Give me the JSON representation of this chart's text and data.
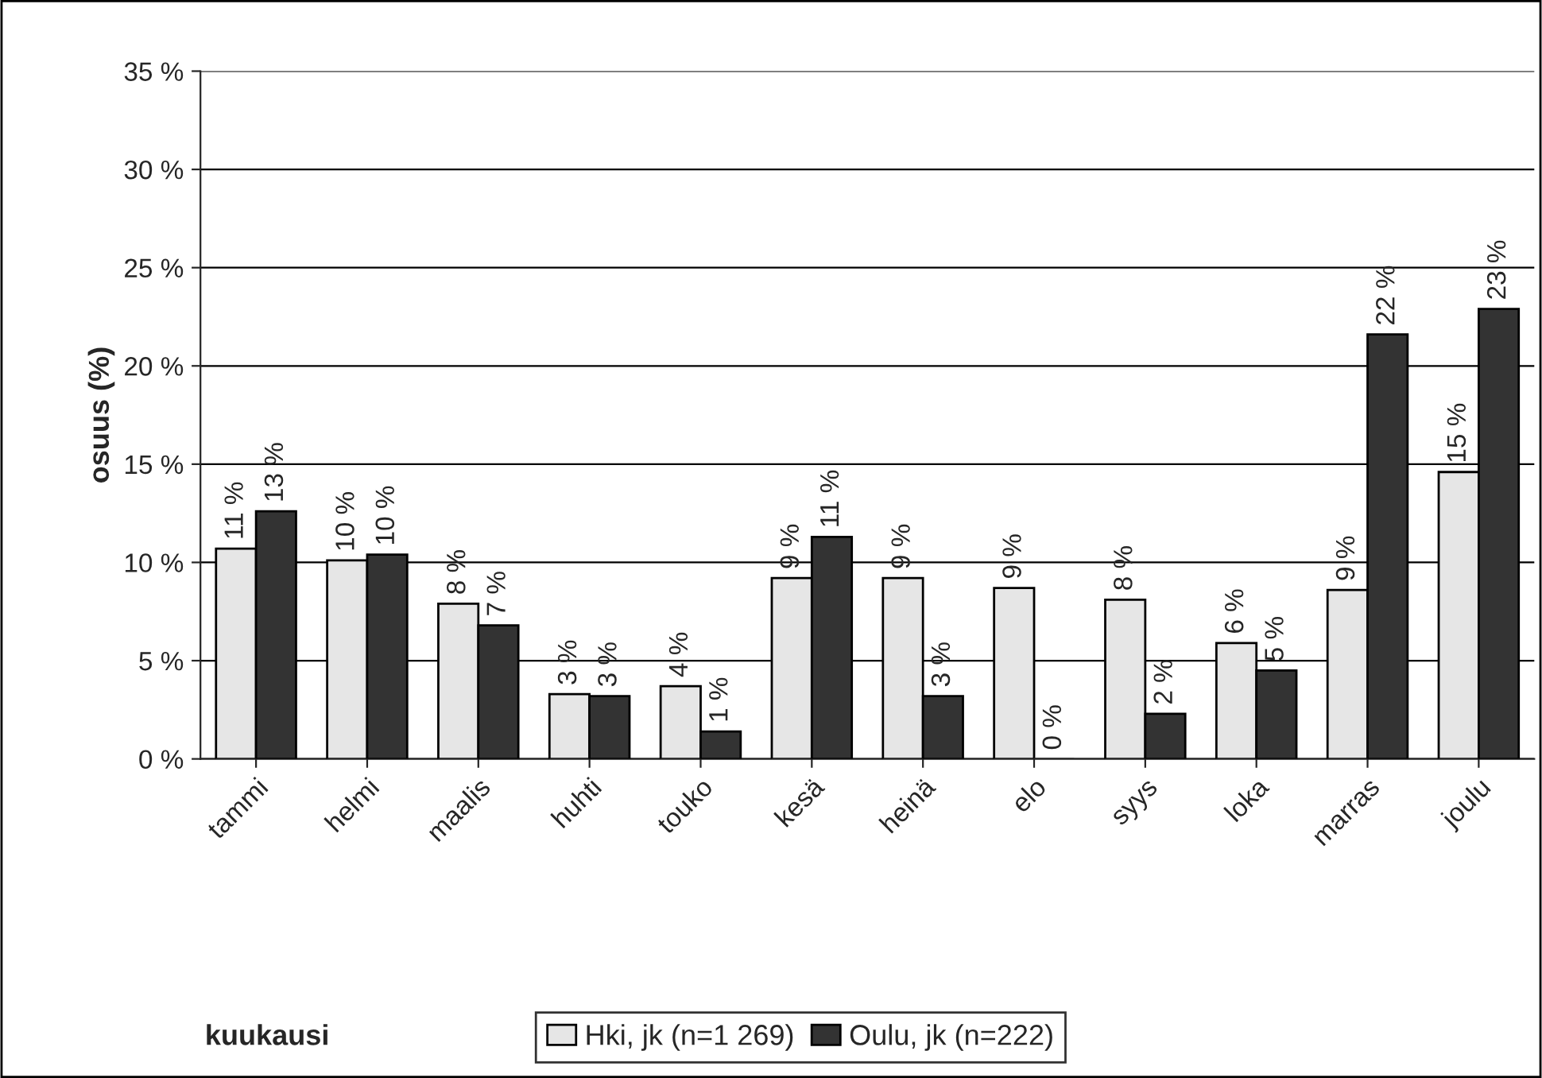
{
  "chart_data": {
    "type": "bar",
    "ylabel": "osuus (%)",
    "annotations": [
      "kuukausi"
    ],
    "categories": [
      "tammi",
      "helmi",
      "maalis",
      "huhti",
      "touko",
      "kesä",
      "heinä",
      "elo",
      "syys",
      "loka",
      "marras",
      "joulu"
    ],
    "series": [
      {
        "name": "Hki, jk (n=1 269)",
        "color": "#e6e6e6",
        "values": [
          10.7,
          10.1,
          7.9,
          3.3,
          3.7,
          9.2,
          9.2,
          8.7,
          8.1,
          5.9,
          8.6,
          14.6
        ],
        "value_labels": [
          "11 %",
          "10 %",
          "8 %",
          "3 %",
          "4 %",
          "9 %",
          "9 %",
          "9 %",
          "8 %",
          "6 %",
          "9 %",
          "15 %"
        ]
      },
      {
        "name": "Oulu, jk (n=222)",
        "color": "#333333",
        "values": [
          12.6,
          10.4,
          6.8,
          3.2,
          1.4,
          11.3,
          3.2,
          0,
          2.3,
          4.5,
          21.6,
          22.9
        ],
        "value_labels": [
          "13 %",
          "10 %",
          "7 %",
          "3 %",
          "1 %",
          "11 %",
          "3 %",
          "0 %",
          "2 %",
          "5 %",
          "22 %",
          "23 %"
        ]
      }
    ],
    "ylim": [
      0,
      35
    ],
    "yticks": [
      {
        "value": 0,
        "label": "0 %"
      },
      {
        "value": 5,
        "label": "5 %"
      },
      {
        "value": 10,
        "label": "10 %"
      },
      {
        "value": 15,
        "label": "15 %"
      },
      {
        "value": 20,
        "label": "20 %"
      },
      {
        "value": 25,
        "label": "25 %"
      },
      {
        "value": 30,
        "label": "30 %"
      },
      {
        "value": 35,
        "label": "35 %"
      }
    ],
    "grid": "y",
    "legend": "bottom"
  }
}
